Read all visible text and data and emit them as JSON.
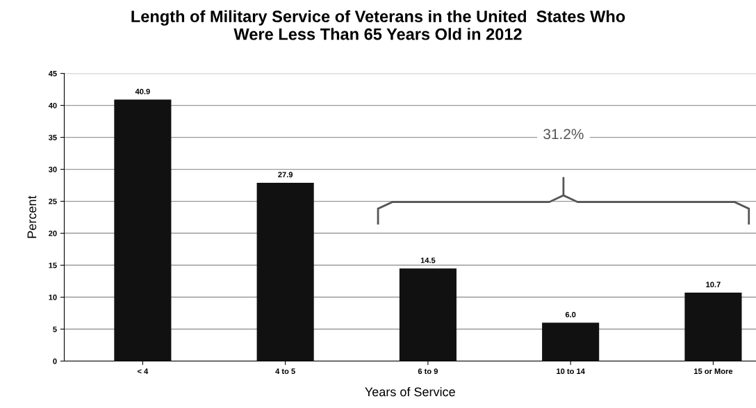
{
  "chart_data": {
    "type": "bar",
    "title": "Length of Military Service of Veterans in the United  States Who\nWere Less Than 65 Years Old in 2012",
    "xlabel": "Years of Service",
    "ylabel": "Percent",
    "categories": [
      "< 4",
      "4 to 5",
      "6 to 9",
      "10 to 14",
      "15 or More"
    ],
    "values": [
      40.9,
      27.9,
      14.5,
      6.0,
      10.7
    ],
    "value_labels": [
      "40.9",
      "27.9",
      "14.5",
      "6.0",
      "10.7"
    ],
    "color": "#111111",
    "ylim": [
      0,
      45
    ],
    "yticks": [
      0,
      5,
      10,
      15,
      20,
      25,
      30,
      35,
      40,
      45
    ],
    "grid": "y",
    "annotations": [
      "31.2%"
    ]
  }
}
